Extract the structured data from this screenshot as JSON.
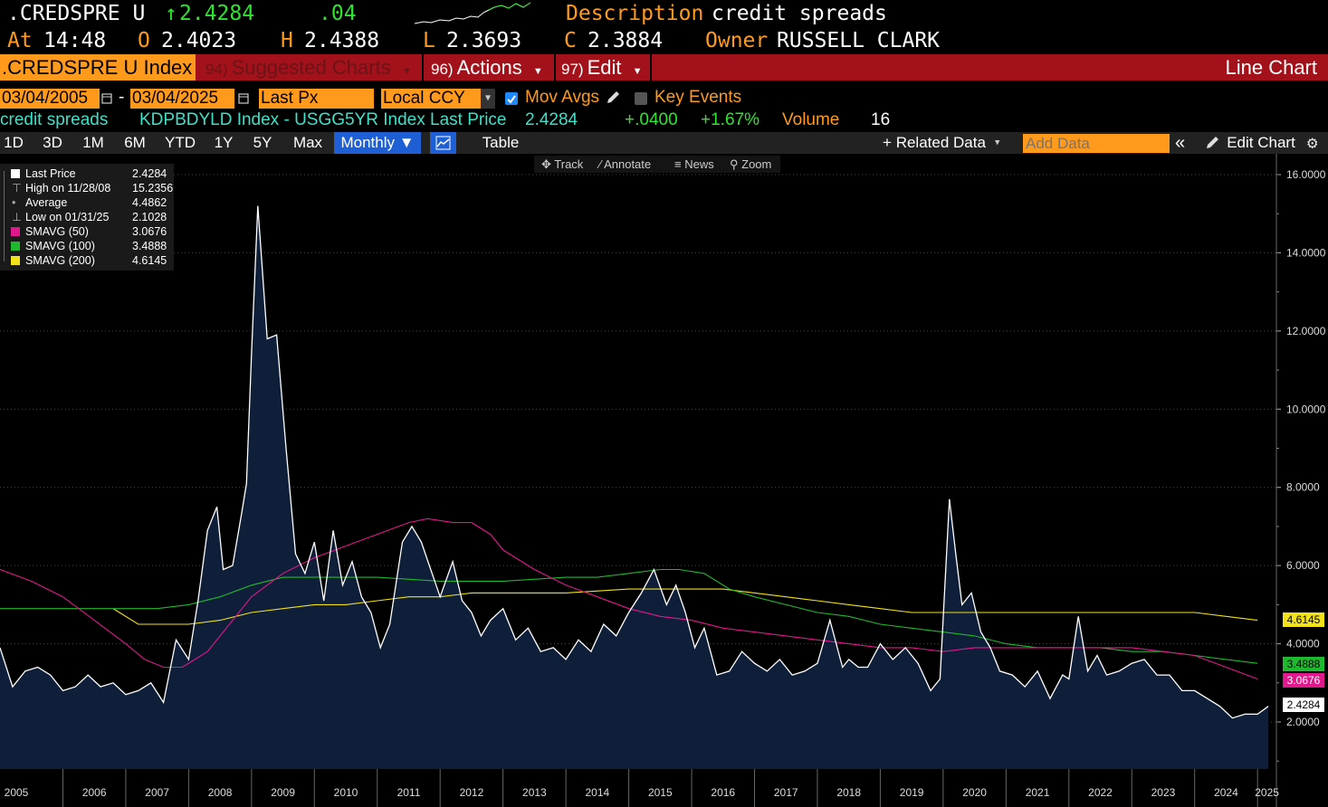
{
  "header": {
    "ticker": ".CREDSPRE U",
    "last_price": "2.4284",
    "up_arrow": "↑",
    "change": ".04",
    "description_label": "Description",
    "description": "credit spreads",
    "at_label": "At",
    "time": "14:48",
    "open_label": "O",
    "open": "2.4023",
    "high_label": "H",
    "high": "2.4388",
    "low_label": "L",
    "low": "2.3693",
    "close_label": "C",
    "close": "2.3884",
    "owner_label": "Owner",
    "owner": "RUSSELL CLARK"
  },
  "menubar": {
    "index_label": ".CREDSPRE U Index",
    "suggested_num": "94)",
    "suggested": "Suggested Charts",
    "actions_num": "96)",
    "actions": "Actions",
    "edit_num": "97)",
    "edit": "Edit",
    "chart_type": "Line Chart"
  },
  "controls": {
    "start_date": "03/04/2005",
    "dash": "-",
    "end_date": "03/04/2025",
    "price_field": "Last Px",
    "currency": "Local CCY",
    "mov_avgs": "Mov Avgs",
    "key_events": "Key Events"
  },
  "security_line": {
    "name": "credit spreads",
    "formula": "KDPBDYLD Index - USGG5YR Index Last Price",
    "price": "2.4284",
    "change": "+.0400",
    "pct": "+1.67%",
    "volume_label": "Volume",
    "volume": "16"
  },
  "toolbar": {
    "periods": [
      "1D",
      "3D",
      "1M",
      "6M",
      "YTD",
      "1Y",
      "5Y",
      "Max"
    ],
    "frequency": "Monthly ▼",
    "table": "Table",
    "related": "+ Related Data",
    "add_data_placeholder": "Add Data",
    "edit_chart": "Edit Chart"
  },
  "chart_tools": {
    "track": "Track",
    "annotate": "Annotate",
    "news": "News",
    "zoom": "Zoom"
  },
  "legend": {
    "rows": [
      {
        "label": "Last Price",
        "value": "2.4284",
        "color": "#ffffff"
      },
      {
        "label": "High on 11/28/08",
        "value": "15.2356",
        "color": ""
      },
      {
        "label": "Average",
        "value": "4.4862",
        "color": ""
      },
      {
        "label": "Low on 01/31/25",
        "value": "2.1028",
        "color": ""
      },
      {
        "label": "SMAVG (50)",
        "value": "3.0676",
        "color": "#e0188c"
      },
      {
        "label": "SMAVG (100)",
        "value": "3.4888",
        "color": "#1fb82e"
      },
      {
        "label": "SMAVG (200)",
        "value": "4.6145",
        "color": "#f2e21a"
      }
    ]
  },
  "right_tags": [
    {
      "value": "4.6145",
      "bg": "#f2e21a",
      "fg": "#000000"
    },
    {
      "value": "3.4888",
      "bg": "#1fb82e",
      "fg": "#000000"
    },
    {
      "value": "3.0676",
      "bg": "#e0188c",
      "fg": "#ffffff"
    },
    {
      "value": "2.4284",
      "bg": "#ffffff",
      "fg": "#000000"
    }
  ],
  "chart_data": {
    "type": "area",
    "x_tick_labels": [
      "2005",
      "2006",
      "2007",
      "2008",
      "2009",
      "2010",
      "2011",
      "2012",
      "2013",
      "2014",
      "2015",
      "2016",
      "2017",
      "2018",
      "2019",
      "2020",
      "2021",
      "2022",
      "2023",
      "2024",
      "2025"
    ],
    "y_tick_labels": [
      "2.0000",
      "4.0000",
      "6.0000",
      "8.0000",
      "10.0000",
      "12.0000",
      "14.0000",
      "16.0000"
    ],
    "ylim": [
      1.0,
      16.2
    ],
    "xlim": [
      2005.0,
      2025.3
    ],
    "series": [
      {
        "name": "Last Price",
        "color": "#ffffff",
        "x": [
          2005.0,
          2005.2,
          2005.4,
          2005.6,
          2005.8,
          2006.0,
          2006.2,
          2006.4,
          2006.6,
          2006.8,
          2007.0,
          2007.2,
          2007.4,
          2007.6,
          2007.8,
          2008.0,
          2008.15,
          2008.3,
          2008.45,
          2008.55,
          2008.7,
          2008.85,
          2008.92,
          2009.0,
          2009.1,
          2009.25,
          2009.4,
          2009.55,
          2009.7,
          2009.85,
          2010.0,
          2010.15,
          2010.3,
          2010.45,
          2010.6,
          2010.75,
          2010.9,
          2011.05,
          2011.2,
          2011.4,
          2011.55,
          2011.7,
          2011.85,
          2012.0,
          2012.2,
          2012.35,
          2012.5,
          2012.65,
          2012.8,
          2013.0,
          2013.2,
          2013.4,
          2013.6,
          2013.8,
          2014.0,
          2014.2,
          2014.4,
          2014.6,
          2014.8,
          2015.0,
          2015.2,
          2015.4,
          2015.6,
          2015.75,
          2015.9,
          2016.05,
          2016.2,
          2016.4,
          2016.6,
          2016.8,
          2017.0,
          2017.2,
          2017.4,
          2017.6,
          2017.8,
          2018.0,
          2018.2,
          2018.4,
          2018.5,
          2018.65,
          2018.8,
          2019.0,
          2019.2,
          2019.4,
          2019.6,
          2019.8,
          2019.95,
          2020.1,
          2020.2,
          2020.3,
          2020.45,
          2020.6,
          2020.75,
          2020.9,
          2021.1,
          2021.3,
          2021.5,
          2021.7,
          2021.9,
          2022.0,
          2022.15,
          2022.3,
          2022.45,
          2022.6,
          2022.8,
          2023.0,
          2023.2,
          2023.4,
          2023.6,
          2023.8,
          2024.0,
          2024.2,
          2024.4,
          2024.6,
          2024.8,
          2025.0,
          2025.17
        ],
        "values": [
          3.9,
          2.9,
          3.3,
          3.4,
          3.2,
          2.8,
          2.9,
          3.2,
          2.9,
          3.0,
          2.7,
          2.8,
          3.0,
          2.5,
          4.1,
          3.6,
          5.1,
          6.9,
          7.5,
          5.9,
          6.0,
          7.4,
          8.1,
          11.4,
          15.2,
          11.8,
          11.9,
          9.0,
          6.3,
          5.8,
          6.6,
          5.1,
          6.9,
          5.5,
          6.1,
          5.2,
          4.8,
          3.9,
          4.5,
          6.6,
          7.0,
          6.6,
          5.9,
          5.2,
          6.1,
          5.1,
          4.8,
          4.2,
          4.6,
          4.9,
          4.1,
          4.4,
          3.8,
          3.9,
          3.6,
          4.1,
          3.8,
          4.5,
          4.2,
          4.8,
          5.3,
          5.9,
          5.0,
          5.5,
          4.8,
          3.9,
          4.4,
          3.2,
          3.3,
          3.8,
          3.5,
          3.3,
          3.6,
          3.2,
          3.3,
          3.5,
          4.6,
          3.4,
          3.6,
          3.4,
          3.4,
          4.0,
          3.6,
          3.9,
          3.5,
          2.8,
          3.1,
          7.7,
          6.3,
          5.0,
          5.3,
          4.3,
          3.9,
          3.3,
          3.2,
          2.9,
          3.3,
          2.6,
          3.2,
          3.1,
          4.7,
          3.3,
          3.7,
          3.2,
          3.3,
          3.5,
          3.6,
          3.2,
          3.2,
          2.8,
          2.8,
          2.6,
          2.4,
          2.1,
          2.2,
          2.2,
          2.4
        ]
      },
      {
        "name": "SMAVG (50)",
        "color": "#e0188c",
        "x": [
          2005.0,
          2005.5,
          2006.0,
          2006.5,
          2007.0,
          2007.3,
          2007.6,
          2007.9,
          2008.3,
          2008.6,
          2009.0,
          2009.5,
          2010.0,
          2010.5,
          2011.0,
          2011.5,
          2011.8,
          2012.2,
          2012.5,
          2012.8,
          2013.0,
          2013.5,
          2014.0,
          2014.5,
          2015.0,
          2015.5,
          2016.0,
          2016.5,
          2017.0,
          2017.5,
          2018.0,
          2018.5,
          2019.0,
          2019.5,
          2020.0,
          2020.5,
          2021.0,
          2021.5,
          2022.0,
          2022.5,
          2023.0,
          2023.5,
          2024.0,
          2024.5,
          2025.0
        ],
        "values": [
          5.9,
          5.6,
          5.2,
          4.6,
          4.0,
          3.6,
          3.4,
          3.4,
          3.8,
          4.4,
          5.2,
          5.8,
          6.2,
          6.5,
          6.8,
          7.1,
          7.2,
          7.1,
          7.1,
          6.8,
          6.4,
          5.9,
          5.5,
          5.2,
          4.9,
          4.7,
          4.6,
          4.4,
          4.3,
          4.2,
          4.1,
          4.0,
          3.9,
          3.9,
          3.8,
          3.9,
          3.9,
          3.9,
          3.9,
          3.9,
          3.9,
          3.8,
          3.7,
          3.4,
          3.1
        ]
      },
      {
        "name": "SMAVG (100)",
        "color": "#1fb82e",
        "x": [
          2005.0,
          2006.0,
          2007.0,
          2007.5,
          2008.0,
          2008.5,
          2009.0,
          2009.5,
          2010.0,
          2011.0,
          2012.0,
          2013.0,
          2014.0,
          2014.5,
          2015.0,
          2015.5,
          2015.8,
          2016.2,
          2016.6,
          2017.0,
          2017.5,
          2018.0,
          2018.5,
          2019.0,
          2019.5,
          2020.0,
          2020.5,
          2021.0,
          2021.5,
          2022.0,
          2022.5,
          2023.0,
          2023.5,
          2024.0,
          2024.5,
          2025.0
        ],
        "values": [
          4.9,
          4.9,
          4.9,
          4.9,
          5.0,
          5.2,
          5.5,
          5.7,
          5.7,
          5.7,
          5.6,
          5.6,
          5.7,
          5.7,
          5.8,
          5.9,
          5.9,
          5.8,
          5.4,
          5.2,
          5.0,
          4.8,
          4.7,
          4.5,
          4.4,
          4.3,
          4.2,
          4.0,
          3.9,
          3.9,
          3.9,
          3.8,
          3.8,
          3.7,
          3.6,
          3.5
        ]
      },
      {
        "name": "SMAVG (200)",
        "color": "#f2e21a",
        "x": [
          2006.8,
          2007.2,
          2007.6,
          2008.0,
          2008.5,
          2009.0,
          2009.5,
          2010.0,
          2010.5,
          2011.0,
          2011.5,
          2012.0,
          2012.5,
          2013.0,
          2014.0,
          2015.0,
          2016.0,
          2016.5,
          2017.0,
          2017.5,
          2018.0,
          2018.5,
          2019.0,
          2019.5,
          2020.0,
          2021.0,
          2022.0,
          2023.0,
          2023.5,
          2024.0,
          2024.5,
          2025.0
        ],
        "values": [
          4.9,
          4.5,
          4.5,
          4.5,
          4.6,
          4.8,
          4.9,
          5.0,
          5.0,
          5.1,
          5.2,
          5.2,
          5.3,
          5.3,
          5.3,
          5.4,
          5.4,
          5.4,
          5.3,
          5.2,
          5.1,
          5.0,
          4.9,
          4.8,
          4.8,
          4.8,
          4.8,
          4.8,
          4.8,
          4.8,
          4.7,
          4.6
        ]
      }
    ]
  }
}
